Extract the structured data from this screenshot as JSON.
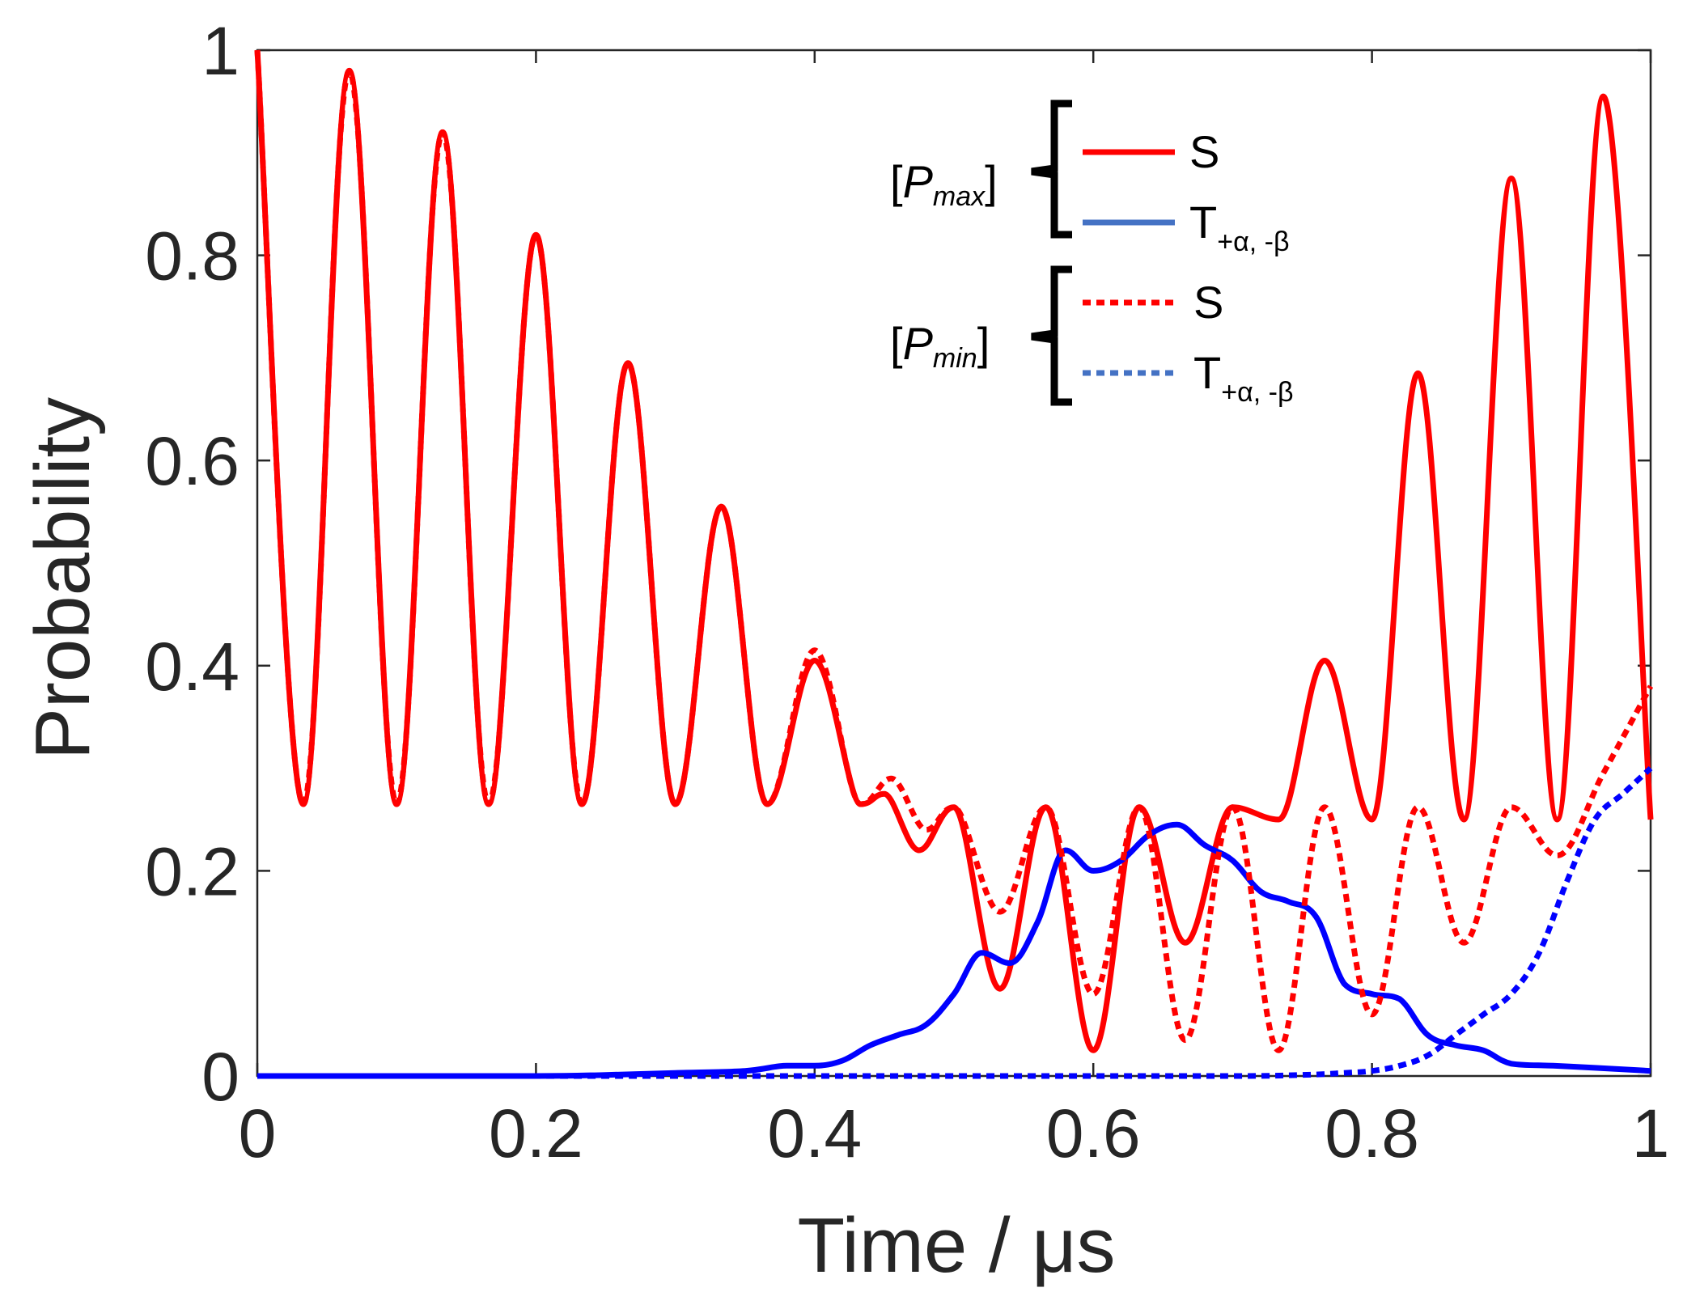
{
  "chart_data": {
    "type": "line",
    "title": "",
    "xlabel": "Time / μs",
    "ylabel": "Probability",
    "xlim": [
      0,
      1
    ],
    "ylim": [
      0,
      1
    ],
    "x_ticks": [
      "0",
      "0.2",
      "0.4",
      "0.6",
      "0.8",
      "1"
    ],
    "y_ticks": [
      "0",
      "0.2",
      "0.4",
      "0.6",
      "0.8",
      "1"
    ],
    "colors": {
      "red": "#ff0000",
      "blue": "#0000ff",
      "legend_blue": "#4472c4",
      "axis": "#262626"
    },
    "legend": {
      "groups": [
        {
          "label_open": "[",
          "label_var": "P",
          "label_sub": "max",
          "label_close": "]",
          "entries": [
            {
              "text": "S",
              "sub": ""
            },
            {
              "text": "T",
              "sub": "+α, -β"
            }
          ]
        },
        {
          "label_open": "[",
          "label_var": "P",
          "label_sub": "min",
          "label_close": "]",
          "entries": [
            {
              "text": "S",
              "sub": ""
            },
            {
              "text": "T",
              "sub": "+α, -β"
            }
          ]
        }
      ]
    },
    "series": [
      {
        "name": "S [Pmax]",
        "color": "#ff0000",
        "dash": "solid",
        "x": [
          0,
          0.033,
          0.066,
          0.1,
          0.133,
          0.166,
          0.2,
          0.233,
          0.266,
          0.3,
          0.333,
          0.366,
          0.4,
          0.433,
          0.45,
          0.475,
          0.5,
          0.533,
          0.566,
          0.6,
          0.633,
          0.666,
          0.7,
          0.733,
          0.766,
          0.8,
          0.833,
          0.866,
          0.9,
          0.933,
          0.966,
          1.0
        ],
        "y": [
          1.0,
          0.265,
          0.98,
          0.265,
          0.92,
          0.265,
          0.82,
          0.265,
          0.695,
          0.265,
          0.555,
          0.265,
          0.405,
          0.265,
          0.275,
          0.22,
          0.262,
          0.085,
          0.262,
          0.025,
          0.262,
          0.13,
          0.262,
          0.25,
          0.405,
          0.25,
          0.685,
          0.25,
          0.875,
          0.25,
          0.955,
          0.25
        ]
      },
      {
        "name": "T+α,-β [Pmax]",
        "color": "#0000ff",
        "dash": "solid",
        "x": [
          0,
          0.1,
          0.2,
          0.25,
          0.3,
          0.35,
          0.38,
          0.4,
          0.42,
          0.44,
          0.46,
          0.48,
          0.5,
          0.52,
          0.54,
          0.56,
          0.58,
          0.6,
          0.62,
          0.64,
          0.66,
          0.68,
          0.7,
          0.72,
          0.74,
          0.76,
          0.78,
          0.8,
          0.82,
          0.84,
          0.86,
          0.88,
          0.9,
          0.93,
          0.96,
          1.0
        ],
        "y": [
          0,
          0,
          0,
          0.001,
          0.003,
          0.005,
          0.01,
          0.01,
          0.015,
          0.03,
          0.04,
          0.05,
          0.08,
          0.12,
          0.11,
          0.15,
          0.22,
          0.2,
          0.21,
          0.235,
          0.245,
          0.225,
          0.21,
          0.18,
          0.17,
          0.155,
          0.09,
          0.08,
          0.075,
          0.04,
          0.03,
          0.025,
          0.012,
          0.01,
          0.008,
          0.005
        ]
      },
      {
        "name": "S [Pmin]",
        "color": "#ff0000",
        "dash": "dotted",
        "x": [
          0,
          0.033,
          0.066,
          0.1,
          0.133,
          0.166,
          0.2,
          0.233,
          0.266,
          0.3,
          0.333,
          0.366,
          0.4,
          0.433,
          0.455,
          0.48,
          0.5,
          0.533,
          0.566,
          0.6,
          0.633,
          0.666,
          0.7,
          0.733,
          0.766,
          0.8,
          0.833,
          0.866,
          0.9,
          0.933,
          0.966,
          1.0
        ],
        "y": [
          1.0,
          0.265,
          0.98,
          0.265,
          0.92,
          0.265,
          0.82,
          0.265,
          0.695,
          0.265,
          0.555,
          0.265,
          0.415,
          0.265,
          0.29,
          0.24,
          0.262,
          0.16,
          0.262,
          0.08,
          0.262,
          0.035,
          0.262,
          0.025,
          0.262,
          0.06,
          0.262,
          0.13,
          0.262,
          0.215,
          0.295,
          0.38
        ]
      },
      {
        "name": "T+α,-β [Pmin]",
        "color": "#0000ff",
        "dash": "dotted",
        "x": [
          0,
          0.2,
          0.4,
          0.6,
          0.7,
          0.75,
          0.78,
          0.8,
          0.82,
          0.84,
          0.86,
          0.88,
          0.9,
          0.92,
          0.94,
          0.96,
          0.98,
          1.0
        ],
        "y": [
          0,
          0,
          0,
          0,
          0,
          0.001,
          0.003,
          0.005,
          0.01,
          0.02,
          0.04,
          0.06,
          0.08,
          0.12,
          0.19,
          0.25,
          0.275,
          0.3
        ]
      }
    ]
  }
}
